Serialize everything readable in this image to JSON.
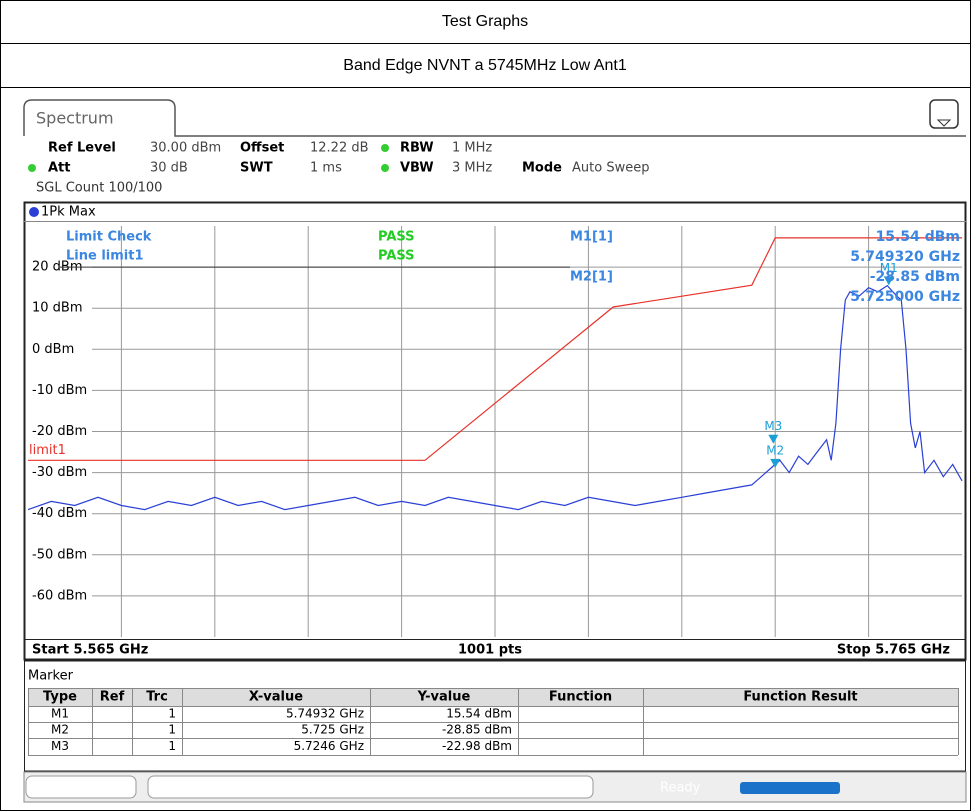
{
  "header": {
    "title": "Test Graphs",
    "subtitle": "Band Edge NVNT a 5745MHz Low Ant1"
  },
  "instrument": {
    "tab": "Spectrum",
    "settings": [
      [
        "Ref Level",
        "30.00 dBm"
      ],
      [
        "Offset",
        "12.22 dB"
      ],
      [
        "RBW",
        "1 MHz"
      ],
      [
        "Att",
        "30 dB"
      ],
      [
        "SWT",
        "1 ms"
      ],
      [
        "VBW",
        "3 MHz"
      ],
      [
        "Mode",
        "Auto Sweep"
      ]
    ],
    "sweep_count": "SGL Count 100/100",
    "footer": {
      "start": "Start 5.565 GHz",
      "points": "1001 pts",
      "stop": "Stop 5.765 GHz"
    },
    "status": "Ready"
  },
  "chart_data": {
    "type": "line",
    "annotations": {
      "limit_check": "Limit Check",
      "limit_check_result": "PASS",
      "line": "Line limit1",
      "line_result": "PASS",
      "m1_label": "M1[1]",
      "m1_level": "15.54 dBm",
      "m1_freq": "5.749320 GHz",
      "m2_label": "M2[1]",
      "m2_level": "-28.85 dBm",
      "m2_freq": "5.725000 GHz"
    },
    "xlim": [
      5.565,
      5.765
    ],
    "ylim": [
      -70,
      30
    ],
    "yticks": [
      {
        "value": 20,
        "label": "20 dBm"
      },
      {
        "value": 10,
        "label": "10 dBm"
      },
      {
        "value": 0,
        "label": "0 dBm"
      },
      {
        "value": -10,
        "label": "-10 dBm"
      },
      {
        "value": -20,
        "label": "-20 dBm"
      },
      {
        "value": -30,
        "label": "-30 dBm"
      },
      {
        "value": -40,
        "label": "-40 dBm"
      },
      {
        "value": -50,
        "label": "-50 dBm"
      },
      {
        "value": -60,
        "label": "-60 dBm"
      }
    ],
    "series": [
      {
        "name": "1Pk Max",
        "color": "#2a3fd6",
        "x": [
          5.565,
          5.57,
          5.575,
          5.58,
          5.585,
          5.59,
          5.595,
          5.6,
          5.605,
          5.61,
          5.615,
          5.62,
          5.625,
          5.63,
          5.635,
          5.64,
          5.645,
          5.65,
          5.655,
          5.66,
          5.665,
          5.67,
          5.675,
          5.68,
          5.685,
          5.69,
          5.695,
          5.7,
          5.705,
          5.71,
          5.715,
          5.72,
          5.722,
          5.724,
          5.726,
          5.728,
          5.73,
          5.732,
          5.734,
          5.736,
          5.737,
          5.738,
          5.739,
          5.74,
          5.741,
          5.743,
          5.745,
          5.747,
          5.749,
          5.751,
          5.752,
          5.753,
          5.754,
          5.755,
          5.756,
          5.757,
          5.759,
          5.761,
          5.763,
          5.765
        ],
        "values": [
          -39,
          -37,
          -38,
          -36,
          -38,
          -39,
          -37,
          -38,
          -36,
          -38,
          -37,
          -39,
          -38,
          -37,
          -36,
          -38,
          -37,
          -38,
          -36,
          -37,
          -38,
          -39,
          -37,
          -38,
          -36,
          -37,
          -38,
          -37,
          -36,
          -35,
          -34,
          -33,
          -31,
          -29,
          -27,
          -30,
          -26,
          -28,
          -25,
          -22,
          -27,
          -18,
          0,
          12,
          14,
          13,
          15,
          14,
          15.5,
          13,
          12,
          0,
          -18,
          -24,
          -20,
          -30,
          -27,
          -31,
          -28,
          -32
        ]
      },
      {
        "name": "limit1",
        "color": "#e8322a",
        "x": [
          5.565,
          5.65,
          5.6903,
          5.72,
          5.725,
          5.765
        ],
        "values": [
          -27,
          -27,
          10.3,
          15.6,
          27.1,
          27.1
        ]
      }
    ],
    "markers": [
      {
        "name": "M1",
        "x": 5.74932,
        "y": 15.54
      },
      {
        "name": "M2",
        "x": 5.725,
        "y": -28.85
      },
      {
        "name": "M3",
        "x": 5.7246,
        "y": -22.98
      }
    ]
  },
  "marker_table": {
    "title": "Marker",
    "columns": [
      "Type",
      "Ref",
      "Trc",
      "X-value",
      "Y-value",
      "Function",
      "Function Result"
    ],
    "rows": [
      [
        "M1",
        "",
        "1",
        "5.74932 GHz",
        "15.54 dBm",
        "",
        ""
      ],
      [
        "M2",
        "",
        "1",
        "5.725 GHz",
        "-28.85 dBm",
        "",
        ""
      ],
      [
        "M3",
        "",
        "1",
        "5.7246 GHz",
        "-22.98 dBm",
        "",
        ""
      ]
    ]
  }
}
